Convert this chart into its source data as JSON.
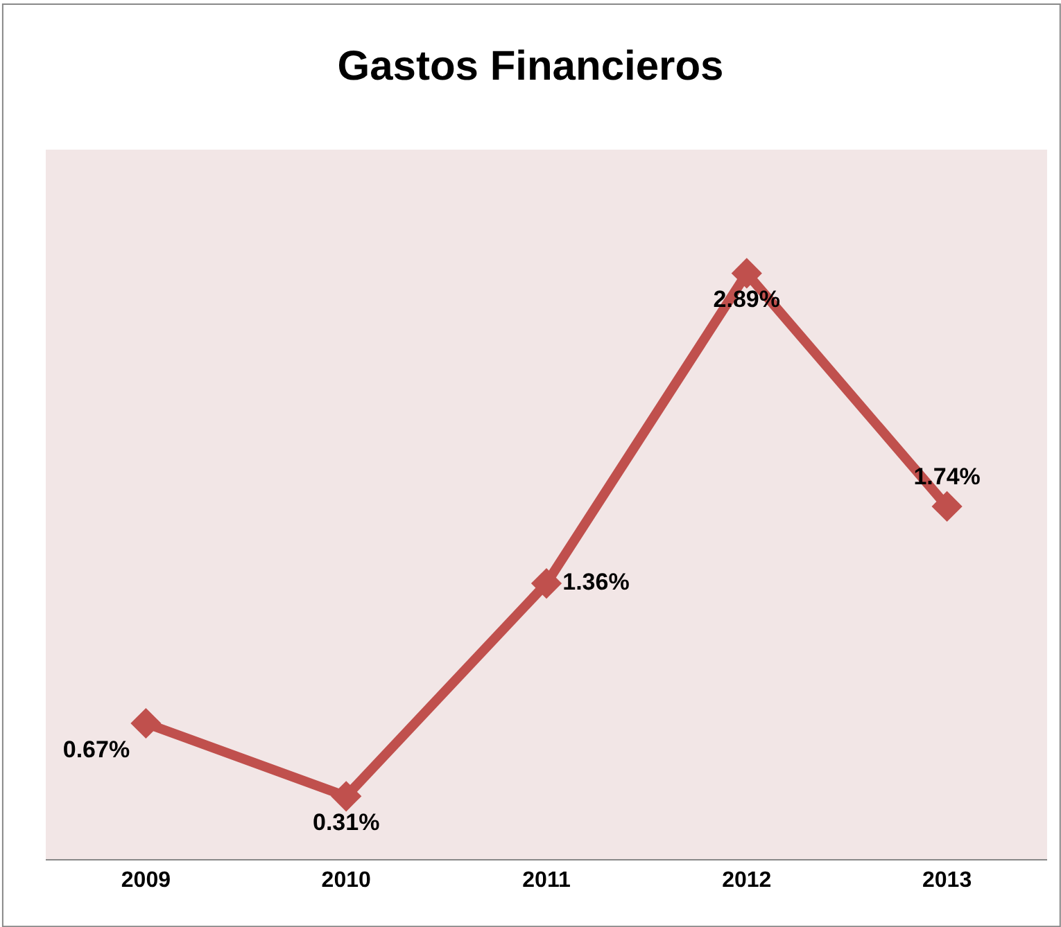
{
  "chart_data": {
    "type": "line",
    "title": "Gastos Financieros",
    "categories": [
      "2009",
      "2010",
      "2011",
      "2012",
      "2013"
    ],
    "series": [
      {
        "color": "#c0504d",
        "values": [
          0.67,
          0.31,
          1.36,
          2.89,
          1.74
        ],
        "value_labels": [
          "0.67%",
          "0.31%",
          "1.36%",
          "2.89%",
          "1.74%"
        ]
      }
    ],
    "ylim": [
      0,
      3.5
    ],
    "tick_labels": "x",
    "grid": false,
    "legend": false,
    "marker": "diamond",
    "line_style": "solid"
  }
}
